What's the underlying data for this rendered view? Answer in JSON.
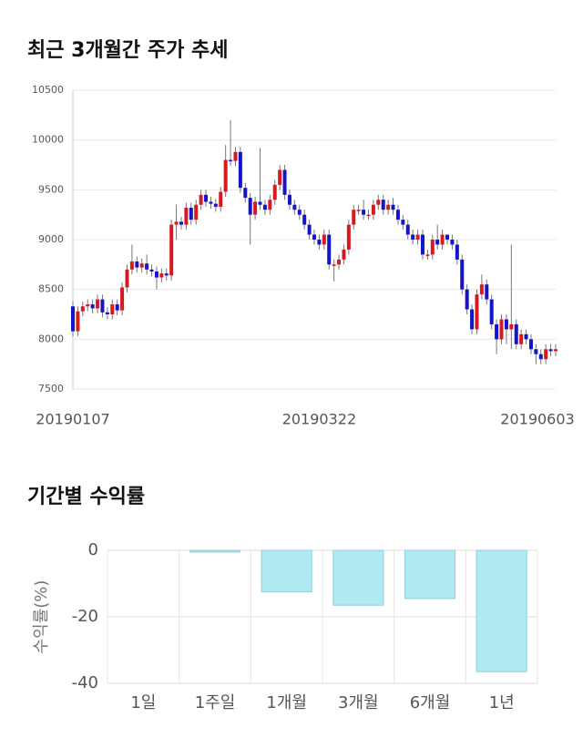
{
  "chart_data": [
    {
      "type": "candlestick",
      "title": "최근 3개월간 주가 추세",
      "categories": [
        "20190107",
        null,
        null,
        null,
        null,
        null,
        null,
        null,
        null,
        null,
        null,
        null,
        null,
        null,
        null,
        null,
        null,
        null,
        null,
        null,
        null,
        null,
        null,
        null,
        null,
        null,
        null,
        null,
        null,
        null,
        null,
        null,
        null,
        null,
        null,
        null,
        null,
        null,
        null,
        null,
        null,
        null,
        null,
        null,
        null,
        null,
        null,
        null,
        null,
        null,
        "20190322",
        null,
        null,
        null,
        null,
        null,
        null,
        null,
        null,
        null,
        null,
        null,
        null,
        null,
        null,
        null,
        null,
        null,
        null,
        null,
        null,
        null,
        null,
        null,
        null,
        null,
        null,
        null,
        null,
        null,
        null,
        null,
        null,
        null,
        null,
        null,
        null,
        null,
        null,
        null,
        null,
        null,
        null,
        null,
        null,
        null,
        null,
        null,
        "20190603"
      ],
      "open": [
        8330,
        8080,
        8280,
        8330,
        8350,
        8310,
        8400,
        8270,
        8250,
        8350,
        8290,
        8520,
        8700,
        8780,
        8720,
        8760,
        8700,
        8680,
        8620,
        8660,
        8640,
        9150,
        9180,
        9150,
        9320,
        9200,
        9350,
        9450,
        9380,
        9360,
        9330,
        9480,
        9800,
        9790,
        9880,
        9520,
        9420,
        9250,
        9380,
        9350,
        9300,
        9400,
        9550,
        9700,
        9450,
        9350,
        9300,
        9250,
        9150,
        9050,
        9000,
        8950,
        9050,
        8750,
        8750,
        8800,
        8900,
        9150,
        9300,
        9300,
        9250,
        9250,
        9350,
        9400,
        9300,
        9350,
        9300,
        9200,
        9150,
        9050,
        9000,
        9050,
        8850,
        8850,
        9000,
        8950,
        9050,
        9000,
        8950,
        8800,
        8500,
        8300,
        8100,
        8450,
        8550,
        8400,
        8150,
        8000,
        8200,
        8100,
        8150,
        7950,
        8050,
        8000,
        7900,
        7850,
        7800,
        7900,
        7880
      ],
      "high": [
        8380,
        8330,
        8380,
        8400,
        8400,
        8450,
        8450,
        8320,
        8400,
        8400,
        8570,
        8750,
        8950,
        8830,
        8810,
        8850,
        8750,
        8730,
        8710,
        8710,
        9200,
        9350,
        9230,
        9370,
        9370,
        9400,
        9500,
        9500,
        9430,
        9410,
        9530,
        9950,
        10200,
        9930,
        9930,
        9570,
        9470,
        9430,
        9920,
        9400,
        9450,
        9600,
        9750,
        9750,
        9500,
        9400,
        9350,
        9300,
        9200,
        9100,
        9050,
        9100,
        9100,
        8800,
        8850,
        8950,
        9200,
        9350,
        9350,
        9400,
        9300,
        9400,
        9450,
        9450,
        9400,
        9420,
        9350,
        9250,
        9200,
        9100,
        9100,
        9100,
        8900,
        9050,
        9150,
        9100,
        9050,
        9050,
        9000,
        8850,
        8550,
        8350,
        8500,
        8650,
        8600,
        8450,
        8200,
        8250,
        8250,
        8950,
        8200,
        8100,
        8100,
        8050,
        7950,
        7900,
        7950,
        7950,
        7950
      ],
      "low": [
        8030,
        8030,
        8230,
        8280,
        8260,
        8260,
        8220,
        8200,
        8200,
        8240,
        8240,
        8470,
        8650,
        8670,
        8670,
        8650,
        8630,
        8500,
        8570,
        8590,
        8590,
        9000,
        9100,
        9100,
        9150,
        9150,
        9300,
        9330,
        9310,
        9280,
        9280,
        9430,
        9740,
        9740,
        9470,
        9370,
        8950,
        9200,
        9300,
        9250,
        9250,
        9350,
        9500,
        9400,
        9300,
        9250,
        9200,
        9100,
        9000,
        8950,
        8900,
        8900,
        8700,
        8580,
        8700,
        8750,
        8850,
        9100,
        9250,
        9200,
        9200,
        9200,
        9300,
        9250,
        9250,
        9250,
        9150,
        9100,
        9000,
        8950,
        8950,
        8800,
        8800,
        8800,
        8900,
        8900,
        8950,
        8900,
        8750,
        8450,
        8250,
        8050,
        8050,
        8400,
        8350,
        8100,
        7850,
        7950,
        7950,
        7900,
        7900,
        7900,
        7950,
        7850,
        7750,
        7750,
        7750,
        7830,
        7830
      ],
      "close": [
        8080,
        8280,
        8330,
        8350,
        8310,
        8400,
        8270,
        8250,
        8350,
        8290,
        8520,
        8700,
        8780,
        8720,
        8760,
        8700,
        8680,
        8620,
        8660,
        8640,
        9150,
        9180,
        9150,
        9320,
        9200,
        9350,
        9450,
        9380,
        9360,
        9330,
        9480,
        9800,
        9790,
        9880,
        9520,
        9420,
        9250,
        9380,
        9350,
        9300,
        9400,
        9550,
        9700,
        9450,
        9350,
        9300,
        9250,
        9150,
        9050,
        9000,
        8950,
        9050,
        8750,
        8750,
        8800,
        8900,
        9150,
        9300,
        9300,
        9250,
        9250,
        9350,
        9400,
        9300,
        9350,
        9300,
        9200,
        9150,
        9050,
        9000,
        9050,
        8850,
        8850,
        9000,
        8950,
        9050,
        9000,
        8950,
        8800,
        8500,
        8300,
        8100,
        8450,
        8550,
        8400,
        8150,
        8000,
        8200,
        8100,
        8150,
        7950,
        8050,
        8000,
        7900,
        7850,
        7800,
        7900,
        7880,
        7900
      ],
      "up_color": "#d71920",
      "down_color": "#1414c8",
      "ylim": [
        7500,
        10500
      ],
      "yticks": [
        7500,
        8000,
        8500,
        9000,
        9500,
        10000,
        10500
      ],
      "grid": true
    },
    {
      "type": "bar",
      "title": "기간별 수익률",
      "ylabel": "수익률(%)",
      "categories": [
        "1일",
        "1주일",
        "1개월",
        "3개월",
        "6개월",
        "1년"
      ],
      "values": [
        0,
        -0.5,
        -12.5,
        -16.5,
        -14.5,
        -36.5
      ],
      "color": "#b0ebf3",
      "edge_color": "#8fcfdb",
      "ylim": [
        -40,
        0
      ],
      "yticks": [
        0,
        -20,
        -40
      ],
      "grid": true
    }
  ]
}
